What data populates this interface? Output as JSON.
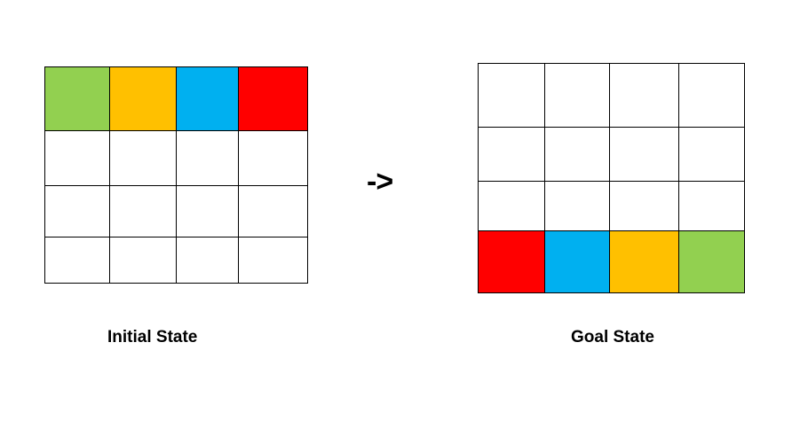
{
  "initial_state": {
    "label": "Initial State",
    "grid": [
      [
        "#92D050",
        "#FFC000",
        "#00B0F0",
        "#FF0000"
      ],
      [
        "#FFFFFF",
        "#FFFFFF",
        "#FFFFFF",
        "#FFFFFF"
      ],
      [
        "#FFFFFF",
        "#FFFFFF",
        "#FFFFFF",
        "#FFFFFF"
      ],
      [
        "#FFFFFF",
        "#FFFFFF",
        "#FFFFFF",
        "#FFFFFF"
      ]
    ]
  },
  "arrow_text": "->",
  "goal_state": {
    "label": "Goal State",
    "grid": [
      [
        "#FFFFFF",
        "#FFFFFF",
        "#FFFFFF",
        "#FFFFFF"
      ],
      [
        "#FFFFFF",
        "#FFFFFF",
        "#FFFFFF",
        "#FFFFFF"
      ],
      [
        "#FFFFFF",
        "#FFFFFF",
        "#FFFFFF",
        "#FFFFFF"
      ],
      [
        "#FF0000",
        "#00B0F0",
        "#FFC000",
        "#92D050"
      ]
    ]
  }
}
